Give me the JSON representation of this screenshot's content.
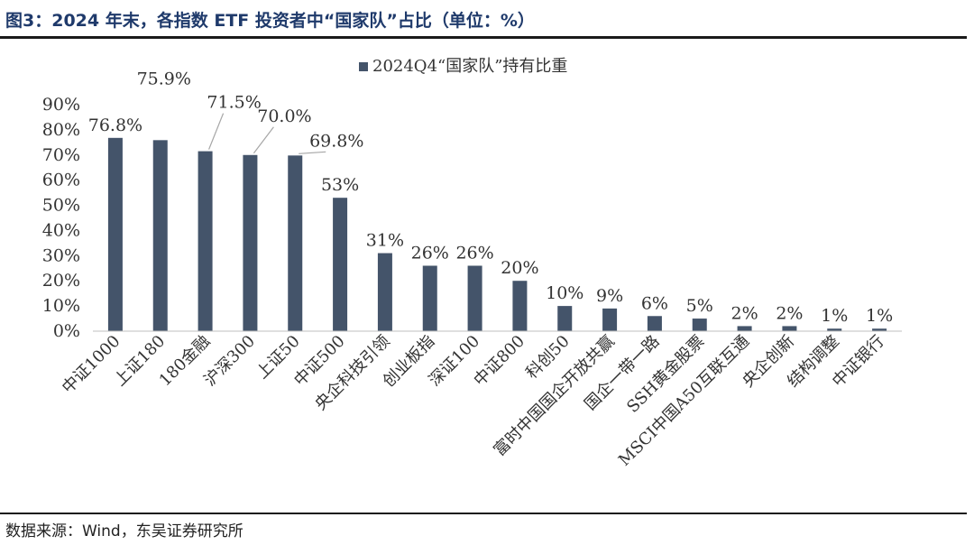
{
  "figure_title": "图3：2024 年末，各指数 ETF 投资者中“国家队”占比（单位：%）",
  "source_text": "数据来源：Wind，东吴证券研究所",
  "colors": {
    "bar": "#44546a",
    "title": "#1f3a6b",
    "rule": "#1a1a1a"
  },
  "chart_data": {
    "type": "bar",
    "title": "",
    "xlabel": "",
    "ylabel": "",
    "ylim": [
      0,
      90
    ],
    "y_ticks": [
      "0%",
      "10%",
      "20%",
      "30%",
      "40%",
      "50%",
      "60%",
      "70%",
      "80%",
      "90%"
    ],
    "grid": false,
    "legend_position": "top-center",
    "series": [
      {
        "name": "2024Q4“国家队”持有比重",
        "values": [
          76.8,
          75.9,
          71.5,
          70.0,
          69.8,
          53,
          31,
          26,
          26,
          20,
          10,
          9,
          6,
          5,
          2,
          2,
          1,
          1
        ]
      }
    ],
    "categories": [
      "中证1000",
      "上证180",
      "180金融",
      "沪深300",
      "上证50",
      "中证500",
      "央企科技引领",
      "创业板指",
      "深证100",
      "中证800",
      "科创50",
      "富时中国国企开放共赢",
      "国企一带一路",
      "SSH黄金股票",
      "MSCI中国A50互联互通",
      "央企创新",
      "结构调整",
      "中证银行"
    ],
    "data_labels": [
      "76.8%",
      "75.9%",
      "71.5%",
      "70.0%",
      "69.8%",
      "53%",
      "31%",
      "26%",
      "26%",
      "20%",
      "10%",
      "9%",
      "6%",
      "5%",
      "2%",
      "2%",
      "1%",
      "1%"
    ]
  }
}
